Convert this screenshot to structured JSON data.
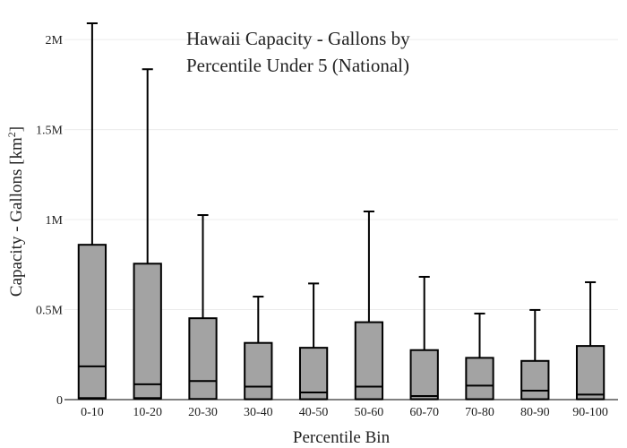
{
  "colors": {
    "box_fill": "#a3a3a3",
    "box_stroke": "#000000",
    "grid": "#ececec",
    "background": "#ffffff",
    "text": "#222222"
  },
  "chart_data": {
    "type": "box",
    "title_line1": "Hawaii Capacity - Gallons by",
    "title_line2": "Percentile Under 5 (National)",
    "xlabel": "Percentile Bin",
    "ylabel_main": "Capacity - Gallons  [km",
    "ylabel_sup": "2",
    "ylabel_end": "]",
    "ylim": [
      0,
      2100000
    ],
    "y_ticks": [
      {
        "value": 0,
        "label": "0"
      },
      {
        "value": 500000,
        "label": "0.5M"
      },
      {
        "value": 1000000,
        "label": "1M"
      },
      {
        "value": 1500000,
        "label": "1.5M"
      },
      {
        "value": 2000000,
        "label": "2M"
      }
    ],
    "grid": true,
    "legend": "none",
    "categories": [
      "0-10",
      "10-20",
      "20-30",
      "30-40",
      "40-50",
      "50-60",
      "60-70",
      "70-80",
      "80-90",
      "90-100"
    ],
    "boxes": [
      {
        "min": 0,
        "q1": 8000,
        "median": 185000,
        "q3": 860000,
        "max": 2090000
      },
      {
        "min": 0,
        "q1": 8000,
        "median": 85000,
        "q3": 755000,
        "max": 1835000
      },
      {
        "min": 0,
        "q1": 3000,
        "median": 103000,
        "q3": 452000,
        "max": 1025000
      },
      {
        "min": 0,
        "q1": 2000,
        "median": 72000,
        "q3": 315000,
        "max": 572000
      },
      {
        "min": 0,
        "q1": 2000,
        "median": 40000,
        "q3": 288000,
        "max": 645000
      },
      {
        "min": 0,
        "q1": 2000,
        "median": 72000,
        "q3": 430000,
        "max": 1045000
      },
      {
        "min": 0,
        "q1": 2000,
        "median": 20000,
        "q3": 275000,
        "max": 682000
      },
      {
        "min": 0,
        "q1": 2000,
        "median": 78000,
        "q3": 232000,
        "max": 478000
      },
      {
        "min": 0,
        "q1": 2000,
        "median": 50000,
        "q3": 215000,
        "max": 498000
      },
      {
        "min": 0,
        "q1": 2000,
        "median": 28000,
        "q3": 298000,
        "max": 652000
      }
    ]
  }
}
